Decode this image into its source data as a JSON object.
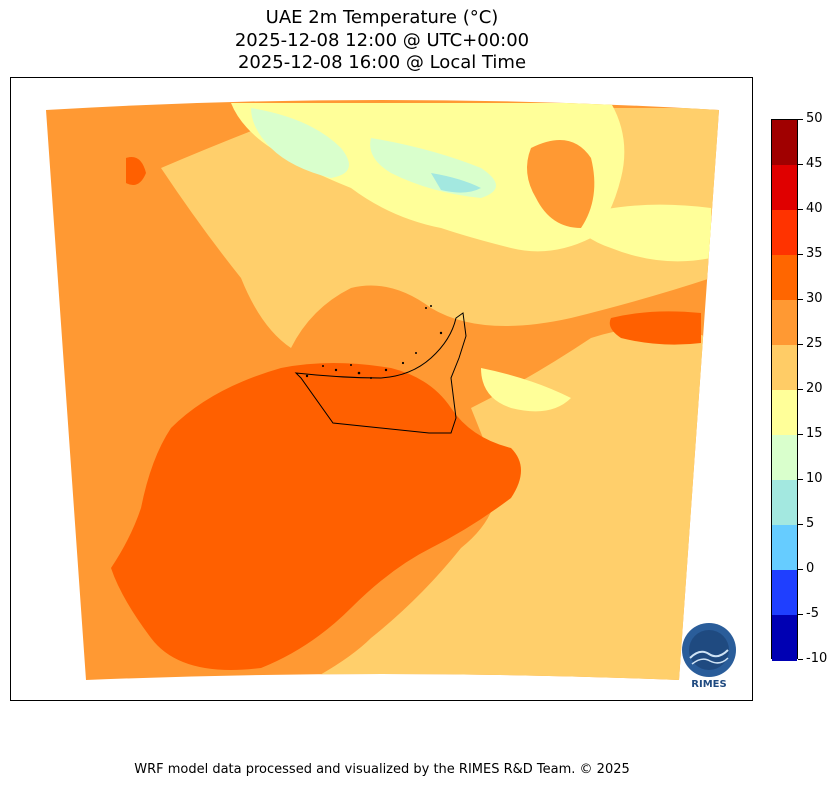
{
  "title": {
    "line1": "UAE 2m Temperature (°C)",
    "line2": "2025-12-08 12:00 @ UTC+00:00",
    "line3": "2025-12-08 16:00 @ Local Time"
  },
  "colorbar": {
    "ticks": [
      "50",
      "45",
      "40",
      "35",
      "30",
      "25",
      "20",
      "15",
      "10",
      "5",
      "0",
      "-5",
      "-10"
    ],
    "colors": [
      "#a00000",
      "#e00000",
      "#ff3300",
      "#ff6600",
      "#ff9933",
      "#ffcc66",
      "#ffff99",
      "#d9ffcc",
      "#a3e8e0",
      "#66ccff",
      "#1f3fff",
      "#0000b3"
    ]
  },
  "colors": {
    "hot_30_35": "#ff6000",
    "warm_25_30": "#ff9933",
    "mild_20_25": "#ffcf6b",
    "cool_15_20": "#ffff99",
    "cooler_10_15": "#d9ffcc",
    "cold_5_10": "#a3e8e0"
  },
  "logo": {
    "text": "RIMES"
  },
  "footer": {
    "text": "WRF model data processed and visualized by the RIMES R&D Team. © 2025"
  }
}
